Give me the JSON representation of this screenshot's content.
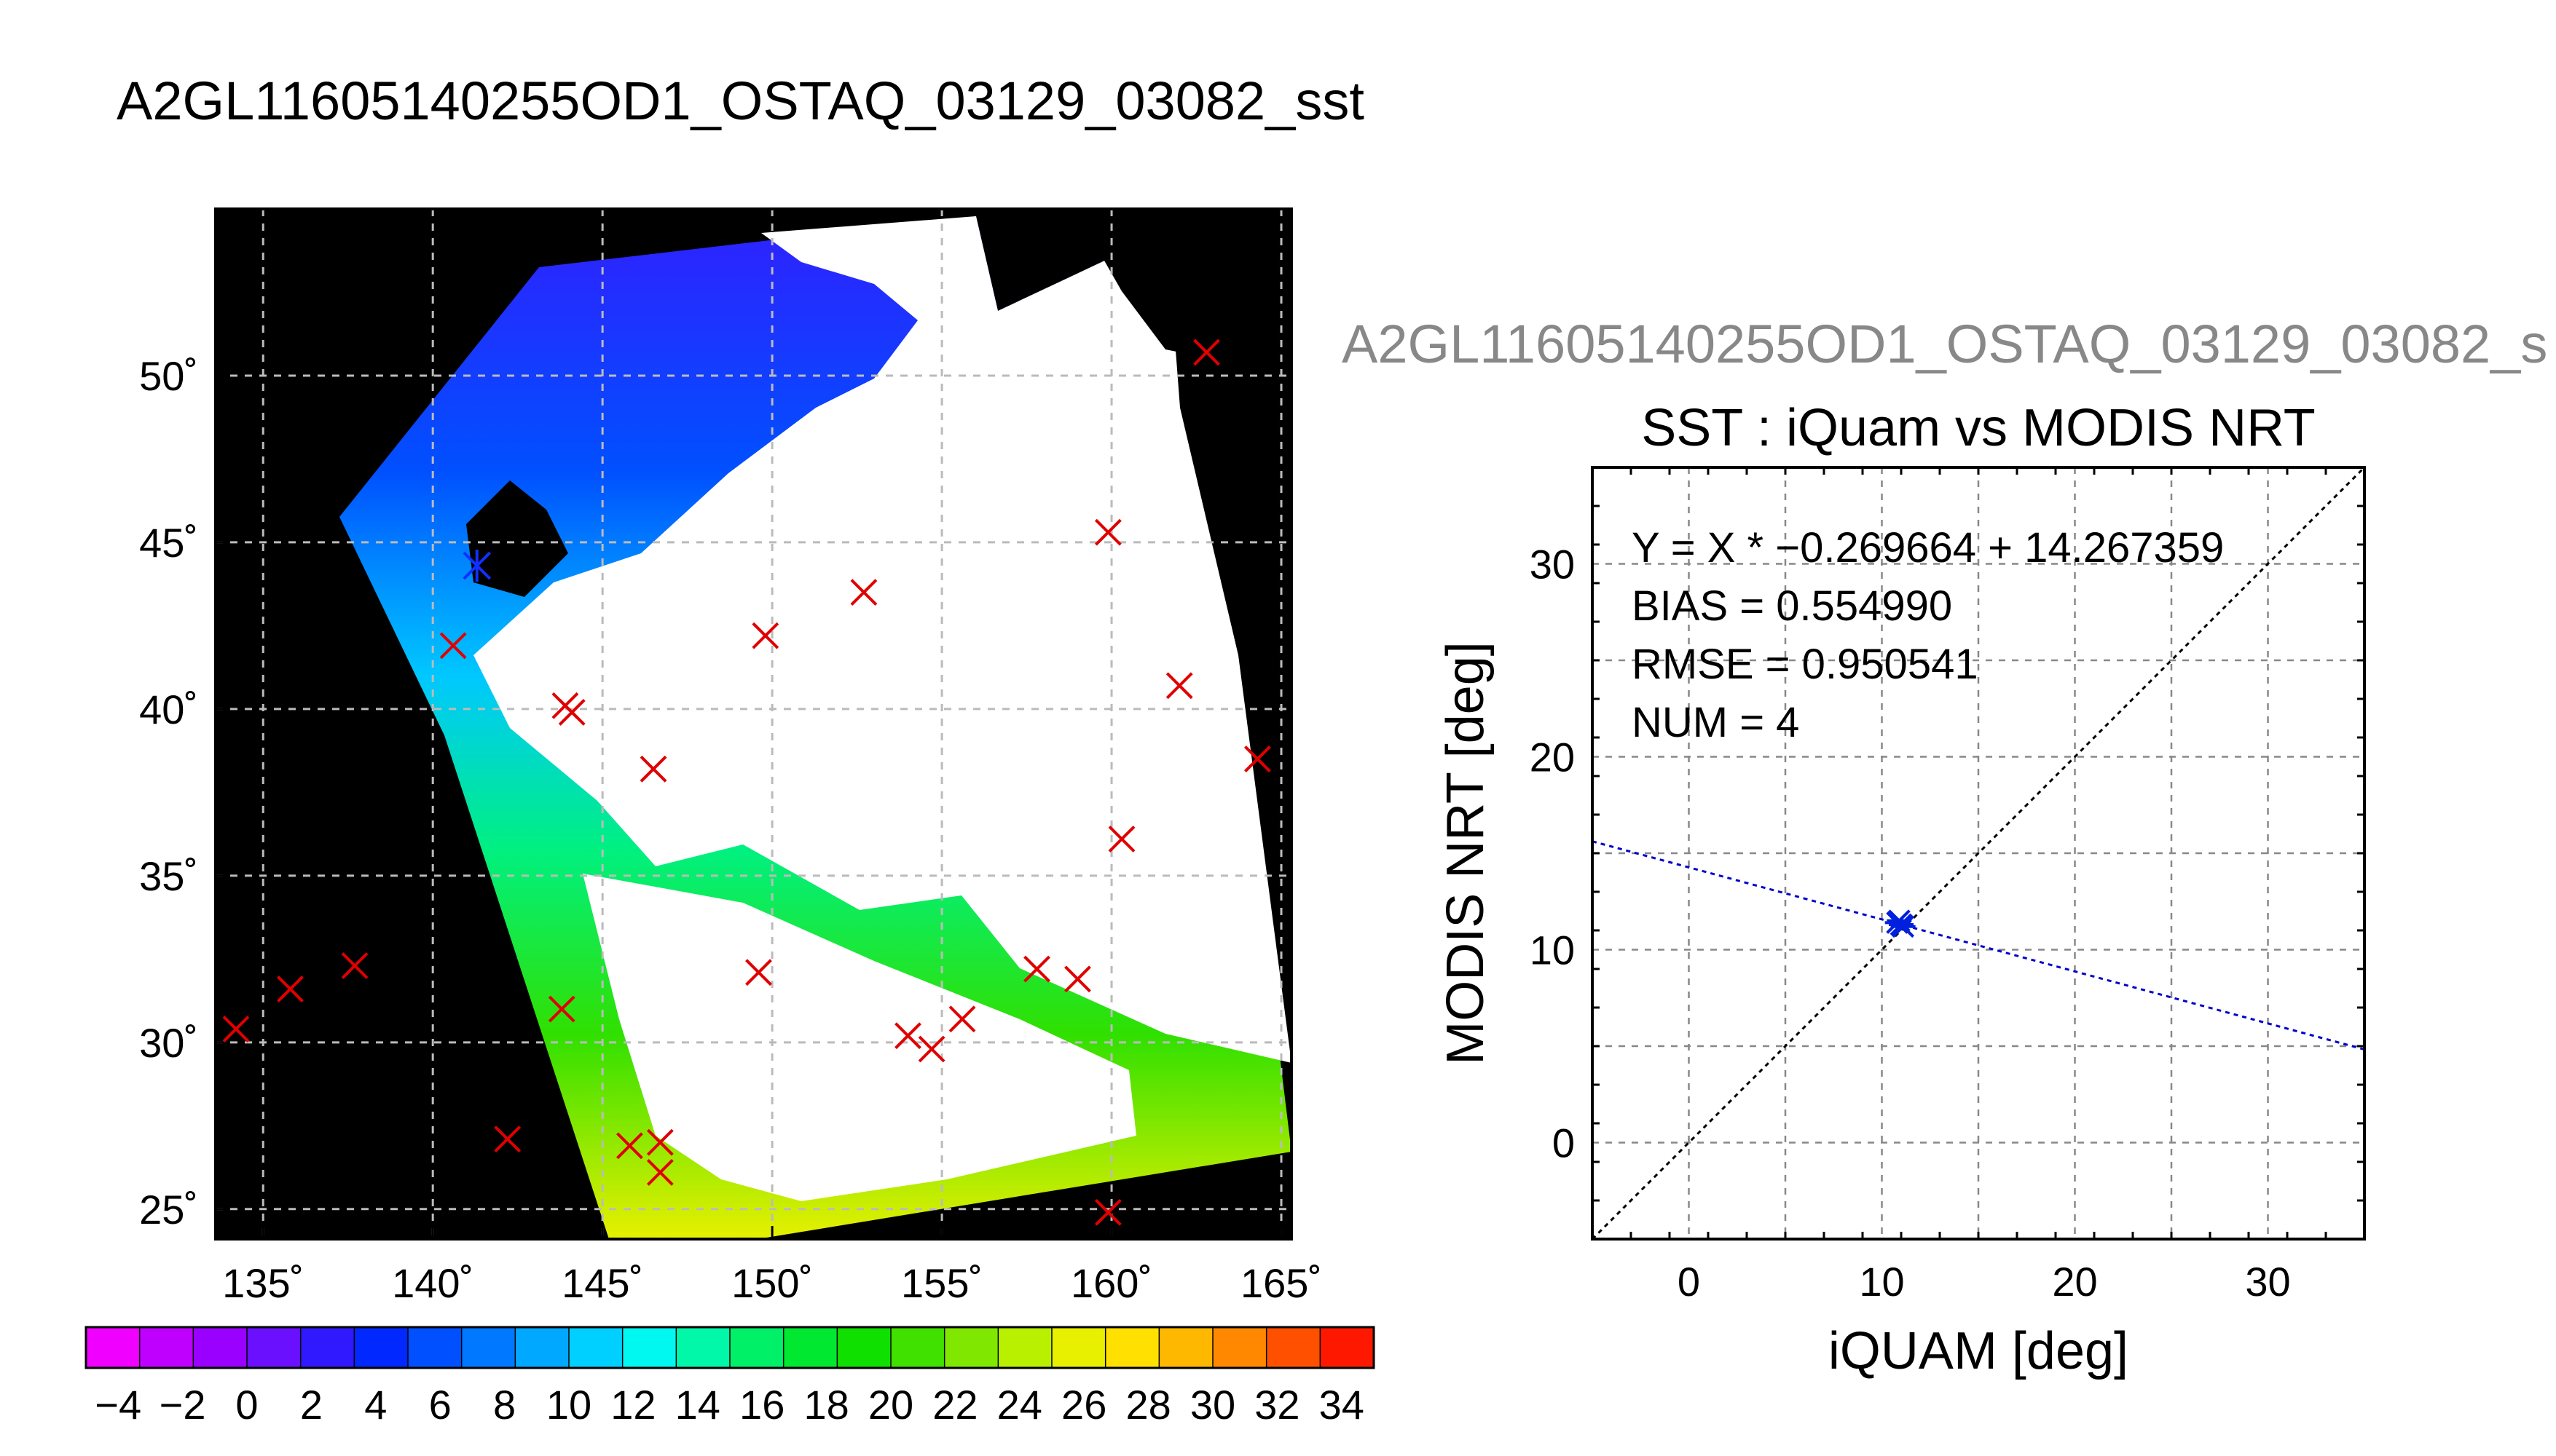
{
  "header": {
    "title": "A2GL11605140255OD1_OSTAQ_03129_03082_sst",
    "secondary_title": "A2GL11605140255OD1_OSTAQ_03129_03082_s"
  },
  "chart_data": [
    {
      "type": "map",
      "title": "A2GL11605140255OD1_OSTAQ_03129_03082_sst",
      "x_ticks": [
        "135˚",
        "140˚",
        "145˚",
        "150˚",
        "155˚",
        "160˚",
        "165˚"
      ],
      "x_tick_values": [
        135,
        140,
        145,
        150,
        155,
        160,
        165
      ],
      "y_ticks": [
        "25˚",
        "30˚",
        "35˚",
        "40˚",
        "45˚",
        "50˚"
      ],
      "y_tick_values": [
        25,
        30,
        35,
        40,
        45,
        50
      ],
      "xlim": [
        133.6,
        165.3
      ],
      "ylim": [
        24.1,
        55.0
      ],
      "grid": true,
      "colorbar": {
        "labels": [
          "−4",
          "−2",
          "0",
          "2",
          "4",
          "6",
          "8",
          "10",
          "12",
          "14",
          "16",
          "18",
          "20",
          "22",
          "24",
          "26",
          "28",
          "30",
          "32",
          "34"
        ],
        "min": -5,
        "max": 35,
        "colors": [
          "#ef00ff",
          "#c000ff",
          "#9a00ff",
          "#6a10ff",
          "#3018ff",
          "#0028ff",
          "#0050ff",
          "#0078ff",
          "#00a8ff",
          "#00d0ff",
          "#00f8f0",
          "#00f8a8",
          "#00f068",
          "#00e830",
          "#10e000",
          "#40e000",
          "#80e800",
          "#b8f000",
          "#e8f000",
          "#ffe000",
          "#ffb800",
          "#ff8800",
          "#ff5000",
          "#ff1800"
        ]
      },
      "markers": {
        "red_x": [
          [
            134.2,
            30.4
          ],
          [
            135.8,
            31.6
          ],
          [
            137.7,
            32.3
          ],
          [
            142.2,
            27.1
          ],
          [
            140.6,
            41.9
          ],
          [
            143.9,
            40.1
          ],
          [
            144.1,
            39.9
          ],
          [
            143.8,
            31.0
          ],
          [
            145.8,
            26.9
          ],
          [
            146.5,
            38.2
          ],
          [
            146.7,
            27.0
          ],
          [
            146.7,
            26.1
          ],
          [
            149.6,
            32.1
          ],
          [
            149.8,
            42.2
          ],
          [
            152.7,
            43.5
          ],
          [
            154.0,
            30.2
          ],
          [
            154.7,
            29.8
          ],
          [
            155.6,
            30.7
          ],
          [
            157.8,
            32.2
          ],
          [
            159.0,
            31.9
          ],
          [
            159.9,
            45.3
          ],
          [
            159.9,
            24.9
          ],
          [
            160.3,
            36.1
          ],
          [
            162.0,
            40.7
          ],
          [
            162.8,
            50.7
          ],
          [
            164.3,
            38.5
          ]
        ],
        "blue_star": [
          [
            141.3,
            44.3
          ]
        ]
      }
    },
    {
      "type": "scatter",
      "title": "SST : iQuam vs MODIS NRT",
      "xlabel": "iQUAM [deg]",
      "ylabel": "MODIS NRT [deg]",
      "xlim": [
        -5,
        35
      ],
      "ylim": [
        -5,
        35
      ],
      "x_ticks": [
        0,
        10,
        20,
        30
      ],
      "y_ticks": [
        0,
        10,
        20,
        30
      ],
      "grid": true,
      "points": [
        [
          10.8,
          11.4
        ],
        [
          11.0,
          11.3
        ],
        [
          10.9,
          11.5
        ],
        [
          11.1,
          11.2
        ]
      ],
      "regression": {
        "slope": -0.269664,
        "intercept": 14.267359
      },
      "identity_line": true,
      "stats": [
        "Y = X * −0.269664 + 14.267359",
        "BIAS = 0.554990",
        "RMSE = 0.950541",
        "NUM = 4"
      ]
    }
  ]
}
